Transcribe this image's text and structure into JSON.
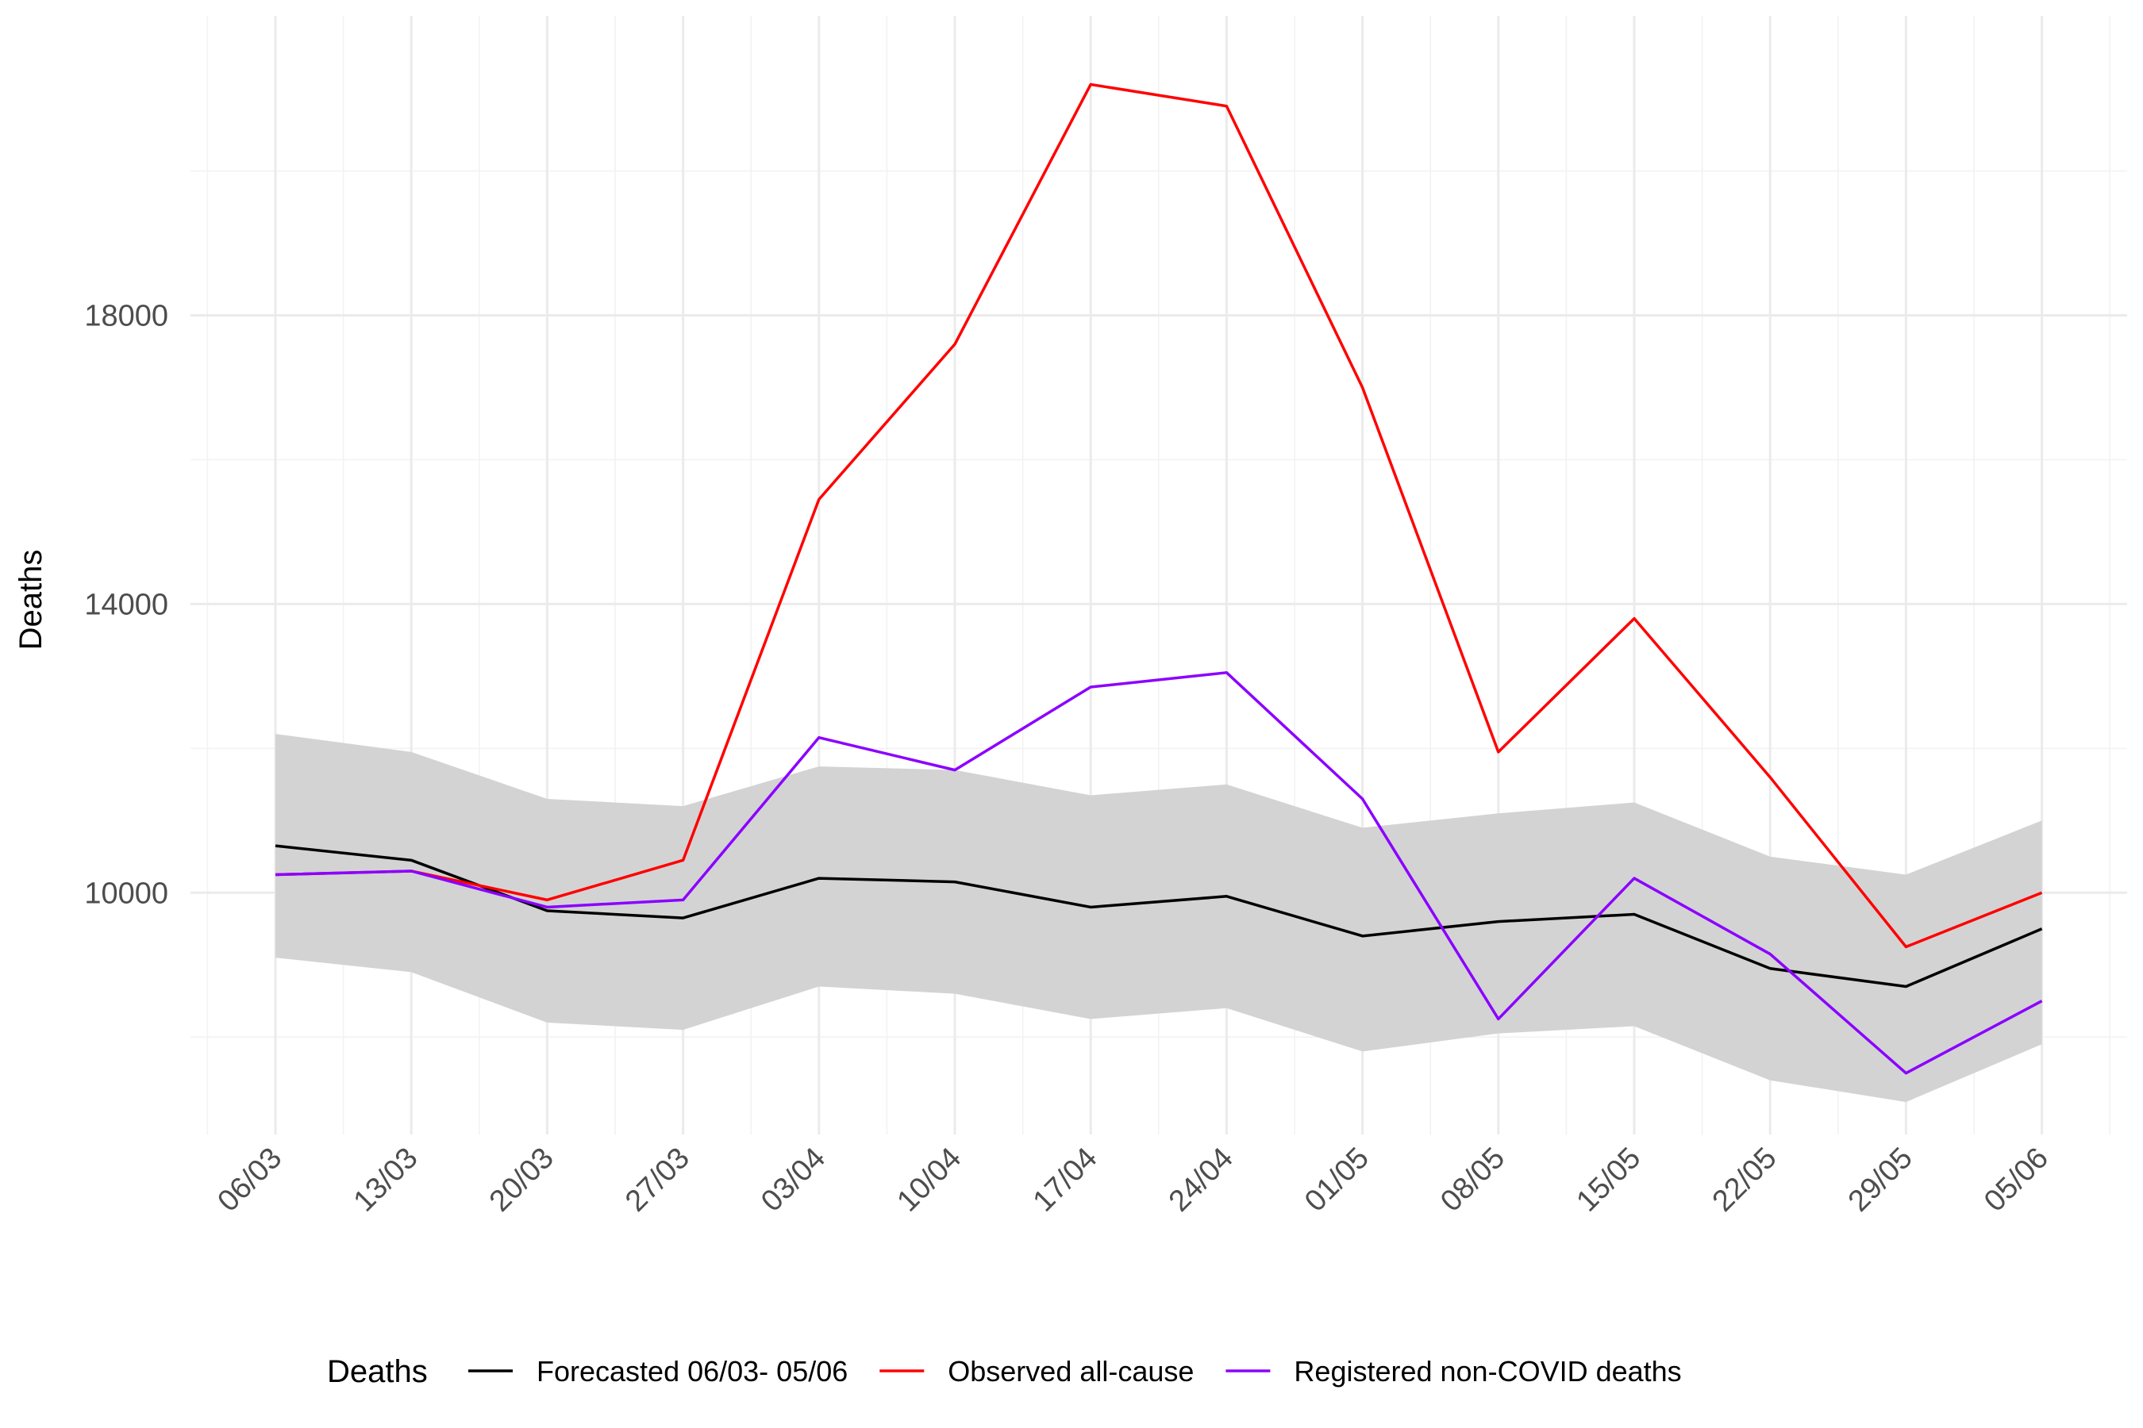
{
  "chart_data": {
    "type": "line",
    "title": "",
    "xlabel": "",
    "ylabel": "Deaths",
    "x": [
      "06/03",
      "13/03",
      "20/03",
      "27/03",
      "03/04",
      "10/04",
      "17/04",
      "24/04",
      "01/05",
      "08/05",
      "15/05",
      "22/05",
      "29/05",
      "05/06"
    ],
    "y_ticks": [
      10000,
      14000,
      18000
    ],
    "ylim": [
      6650,
      22150
    ],
    "grid": true,
    "legend": {
      "title": "Deaths",
      "position": "bottom"
    },
    "band": {
      "lower": [
        9100,
        8900,
        8200,
        8100,
        8700,
        8600,
        8250,
        8400,
        7800,
        8050,
        8150,
        7400,
        7100,
        7900
      ],
      "upper": [
        12200,
        11950,
        11300,
        11200,
        11750,
        11700,
        11350,
        11500,
        10900,
        11100,
        11250,
        10500,
        10250,
        11000
      ],
      "color": "#d3d3d3"
    },
    "series": [
      {
        "name": "Forecasted 06/03- 05/06",
        "color": "#000000",
        "values": [
          10650,
          10450,
          9750,
          9650,
          10200,
          10150,
          9800,
          9950,
          9400,
          9600,
          9700,
          8950,
          8700,
          9500
        ]
      },
      {
        "name": "Observed all-cause",
        "color": "#ff0000",
        "values": [
          10250,
          10300,
          9900,
          10450,
          15450,
          17600,
          21200,
          20900,
          17000,
          11950,
          13800,
          11600,
          9250,
          10000
        ]
      },
      {
        "name": "Registered non-COVID deaths",
        "color": "#8b00ff",
        "values": [
          10250,
          10300,
          9800,
          9900,
          12150,
          11700,
          12850,
          13050,
          11300,
          8250,
          10200,
          9150,
          7500,
          8500
        ]
      }
    ]
  }
}
